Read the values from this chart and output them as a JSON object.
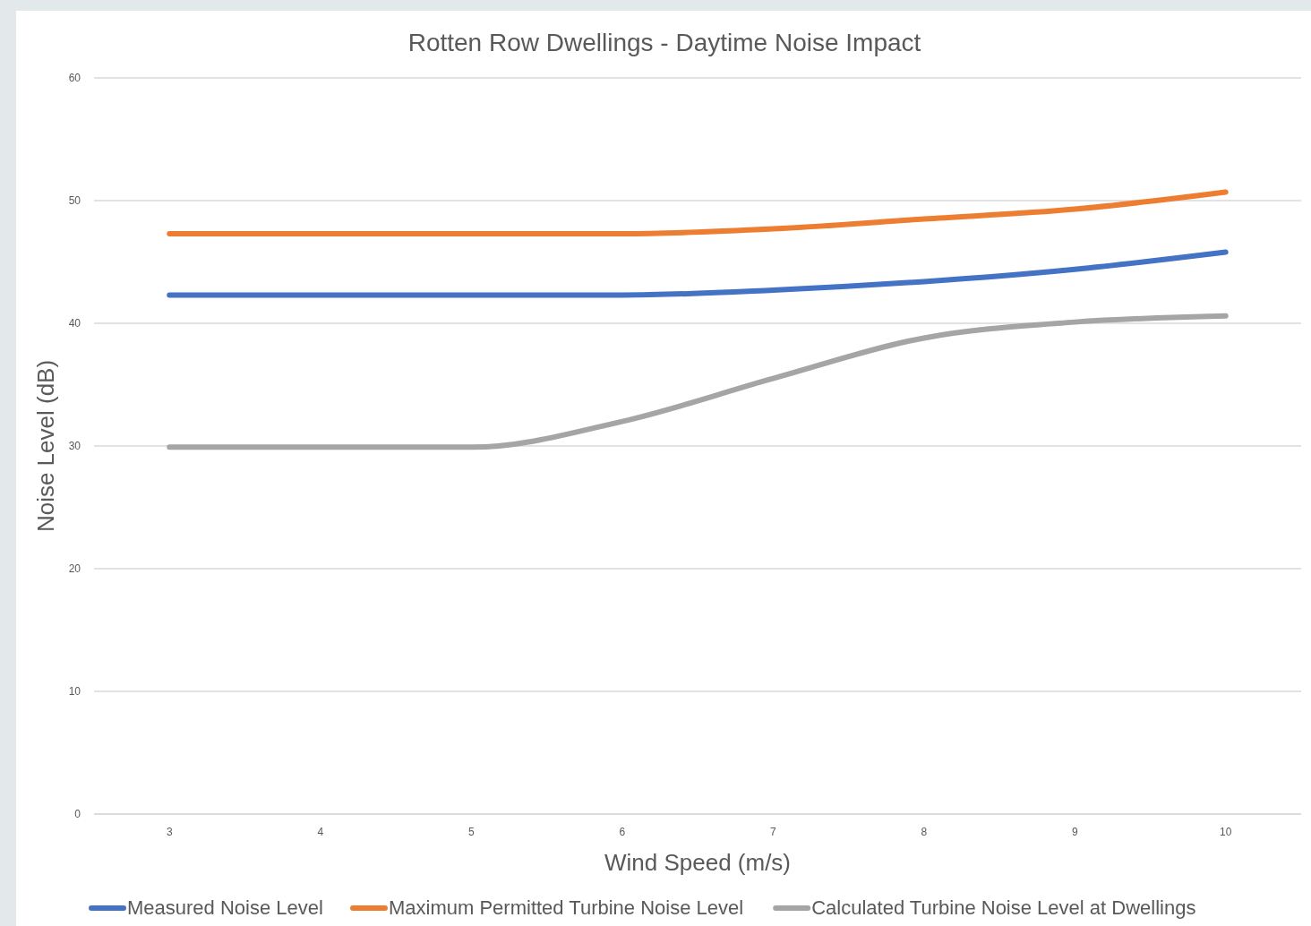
{
  "chart_data": {
    "type": "line",
    "title": "Rotten Row Dwellings - Daytime Noise Impact",
    "xlabel": "Wind Speed (m/s)",
    "ylabel": "Noise Level (dB)",
    "categories": [
      "3",
      "4",
      "5",
      "6",
      "7",
      "8",
      "9",
      "10"
    ],
    "series": [
      {
        "name": "Measured Noise Level",
        "color": "#4472c4",
        "values": [
          42.3,
          42.3,
          42.3,
          42.3,
          42.7,
          43.4,
          44.4,
          45.8
        ]
      },
      {
        "name": "Maximum Permitted Turbine Noise Level",
        "color": "#ed7d31",
        "values": [
          47.3,
          47.3,
          47.3,
          47.3,
          47.7,
          48.5,
          49.3,
          50.7
        ]
      },
      {
        "name": "Calculated Turbine Noise Level at Dwellings",
        "color": "#a5a5a5",
        "values": [
          29.9,
          29.9,
          29.9,
          32.0,
          35.5,
          38.8,
          40.1,
          40.6
        ]
      }
    ],
    "ylim": [
      0,
      60
    ],
    "yticks": [
      0,
      10,
      20,
      30,
      40,
      50,
      60
    ],
    "grid": "y",
    "legend": "bottom",
    "marker": "none",
    "line_style": "solid"
  }
}
